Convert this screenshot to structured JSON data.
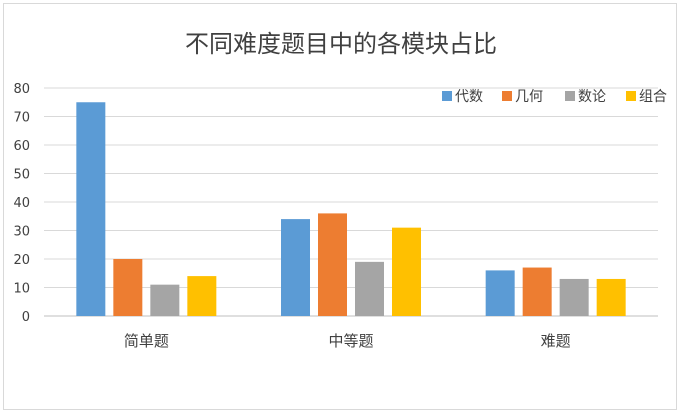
{
  "chart_data": {
    "type": "bar",
    "title": "不同难度题目中的各模块占比",
    "xlabel": "",
    "ylabel": "",
    "categories": [
      "简单题",
      "中等题",
      "难题"
    ],
    "series": [
      {
        "name": "代数",
        "values": [
          75,
          34,
          16
        ],
        "color": "#5b9bd5"
      },
      {
        "name": "几何",
        "values": [
          20,
          36,
          17
        ],
        "color": "#ed7d31"
      },
      {
        "name": "数论",
        "values": [
          11,
          19,
          13
        ],
        "color": "#a5a5a5"
      },
      {
        "name": "组合",
        "values": [
          14,
          31,
          13
        ],
        "color": "#ffc000"
      }
    ],
    "ylim": [
      0,
      80
    ],
    "yticks": [
      0,
      10,
      20,
      30,
      40,
      50,
      60,
      70,
      80
    ],
    "grid": true,
    "legend_position": "top-right"
  }
}
